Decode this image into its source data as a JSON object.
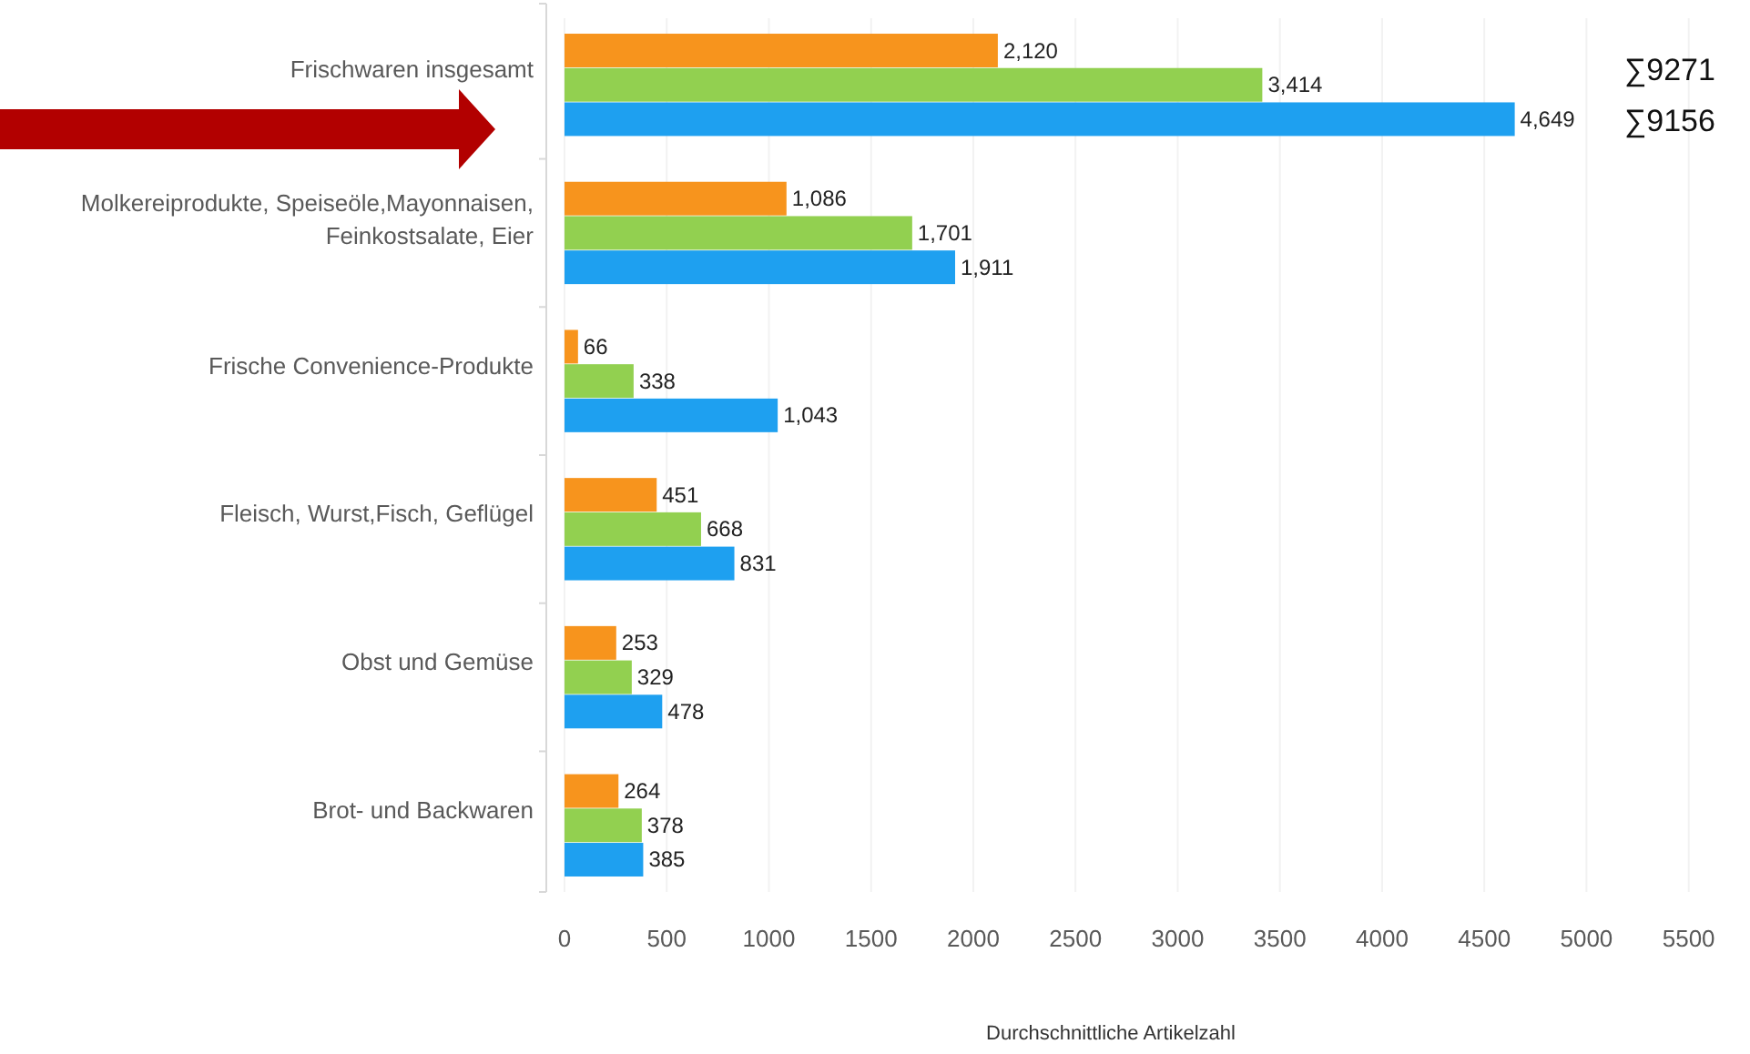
{
  "chart_data": {
    "type": "bar",
    "orientation": "horizontal",
    "xlabel": "Durchschnittliche Artikelzahl",
    "categories": [
      "Frischwaren insgesamt",
      "Molkereiprodukte, Speiseöle,Mayonnaisen, Feinkostsalate, Eier",
      "Frische Convenience-Produkte",
      "Fleisch, Wurst,Fisch, Geflügel",
      "Obst und Gemüse",
      "Brot- und Backwaren"
    ],
    "series": [
      {
        "color": "#f7941d",
        "values": [
          2120,
          1086,
          66,
          451,
          253,
          264
        ],
        "value_labels": [
          "2,120",
          "1,086",
          "66",
          "451",
          "253",
          "264"
        ]
      },
      {
        "color": "#92d050",
        "values": [
          3414,
          1701,
          338,
          668,
          329,
          378
        ],
        "value_labels": [
          "3,414",
          "1,701",
          "338",
          "668",
          "329",
          "378"
        ]
      },
      {
        "color": "#1ea0f0",
        "values": [
          4649,
          1911,
          1043,
          831,
          478,
          385
        ],
        "value_labels": [
          "4,649",
          "1,911",
          "1,043",
          "831",
          "478",
          "385"
        ]
      }
    ],
    "xlim": [
      0,
      5800
    ],
    "xticks": [
      0,
      500,
      1000,
      1500,
      2000,
      2500,
      3000,
      3500,
      4000,
      4500,
      5000,
      5500
    ],
    "grid": "x",
    "annotations": [
      "∑9271",
      "∑9156"
    ]
  }
}
